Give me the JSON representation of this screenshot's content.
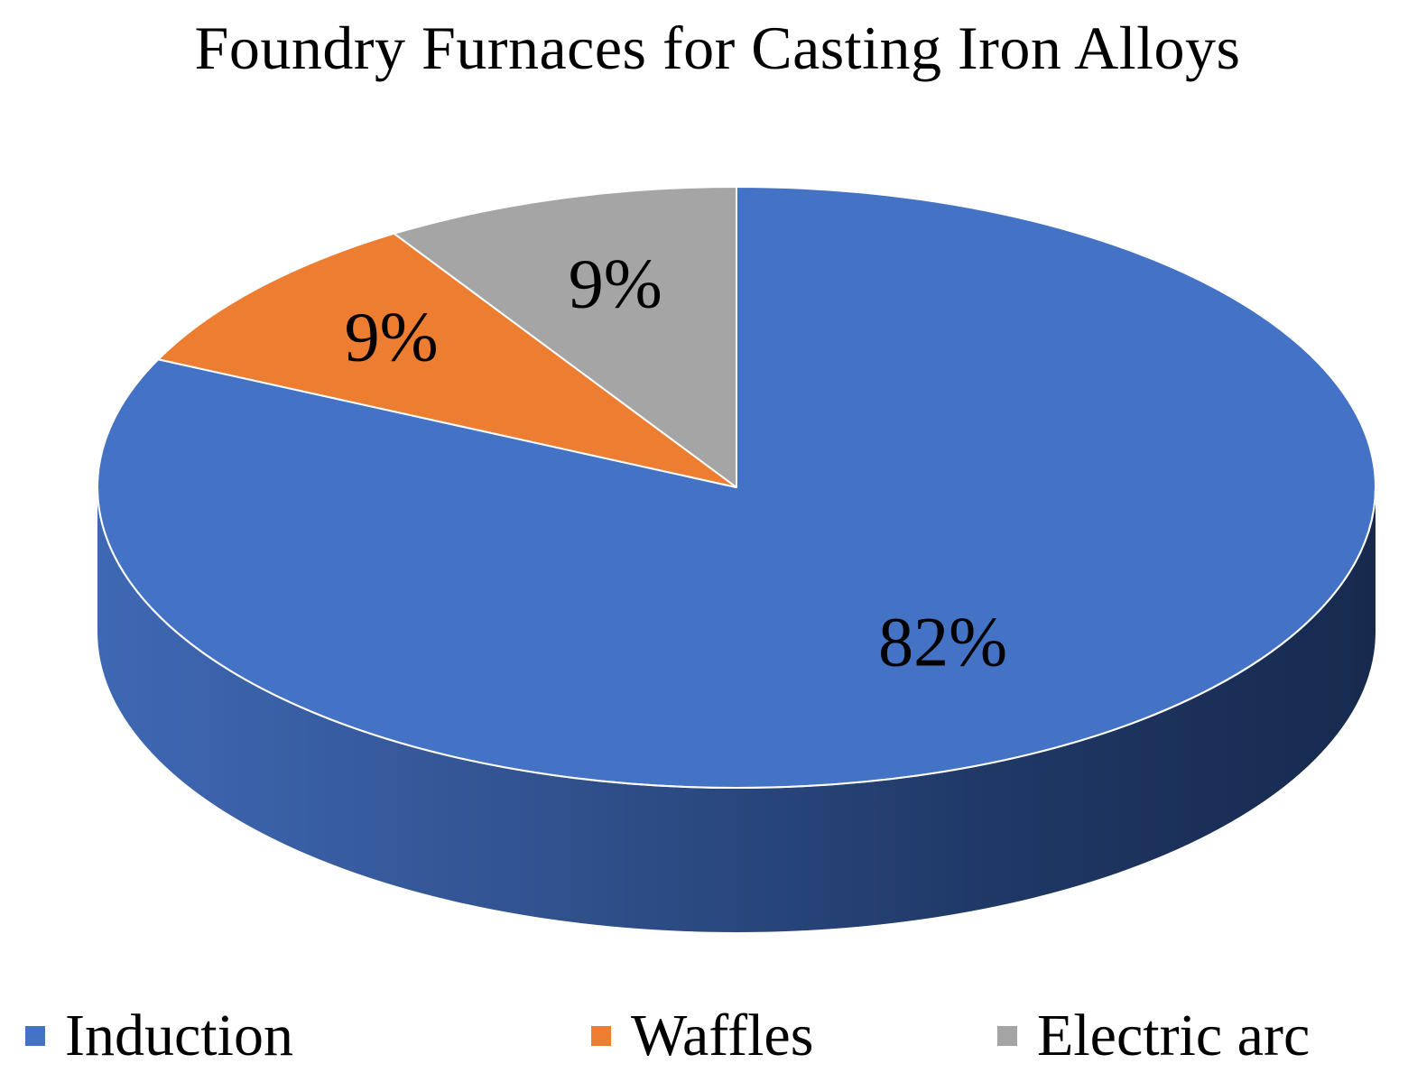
{
  "chart_data": {
    "type": "pie",
    "title": "Foundry Furnaces for Casting Iron Alloys",
    "categories": [
      "Induction",
      "Waffles",
      "Electric arc"
    ],
    "values": [
      82,
      9,
      9
    ],
    "data_labels": [
      "82%",
      "9%",
      "9%"
    ],
    "colors": [
      "#4472C4",
      "#ED7D31",
      "#A5A5A5"
    ],
    "style": "3d",
    "legend_position": "bottom",
    "legend": [
      {
        "label": "Induction",
        "color": "#4472C4"
      },
      {
        "label": "Waffles",
        "color": "#ED7D31"
      },
      {
        "label": "Electric arc",
        "color": "#A5A5A5"
      }
    ]
  }
}
